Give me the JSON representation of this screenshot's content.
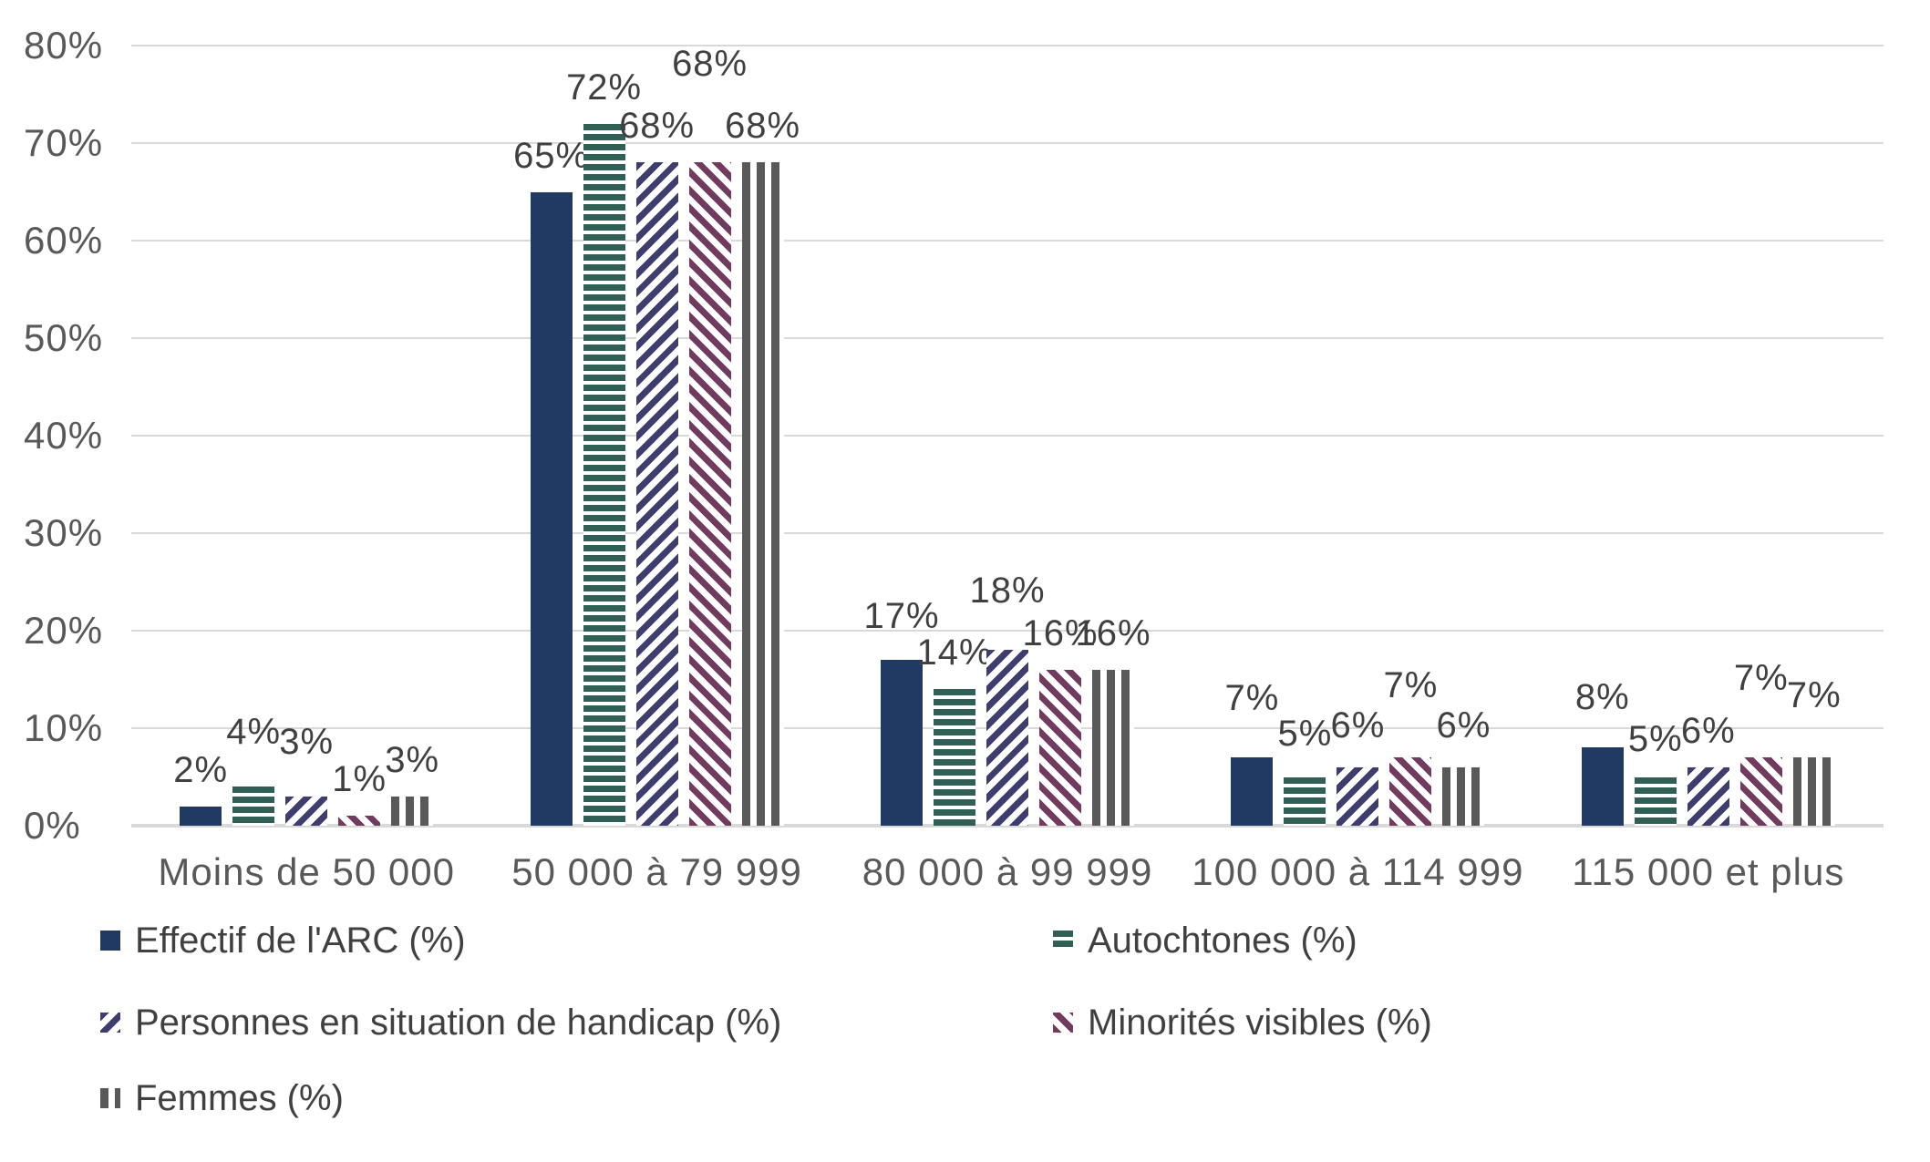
{
  "chart_data": {
    "type": "bar",
    "title": "",
    "categories": [
      "Moins de 50 000",
      "50 000 à 79 999",
      "80 000 à 99 999",
      "100 000 à 114 999",
      "115 000 et plus"
    ],
    "series": [
      {
        "name": "Effectif de l'ARC (%)",
        "pattern": "solid",
        "color": "#213A63",
        "values": [
          2,
          65,
          17,
          7,
          8
        ]
      },
      {
        "name": "Autochtones (%)",
        "pattern": "horizontal-stripes",
        "color": "#306055",
        "values": [
          4,
          72,
          14,
          5,
          5
        ]
      },
      {
        "name": "Personnes en situation de handicap (%)",
        "pattern": "diagonal-up-stripes",
        "color": "#3E3E6E",
        "values": [
          3,
          68,
          18,
          6,
          6
        ]
      },
      {
        "name": "Minorités visibles (%)",
        "pattern": "diagonal-down-stripes",
        "color": "#703B5F",
        "values": [
          1,
          68,
          16,
          7,
          7
        ]
      },
      {
        "name": "Femmes (%)",
        "pattern": "vertical-stripes",
        "color": "#595959",
        "values": [
          3,
          68,
          16,
          6,
          7
        ]
      }
    ],
    "data_labels": [
      "2%",
      "4%",
      "3%",
      "1%",
      "3%",
      "65%",
      "72%",
      "68%",
      "68%",
      "68%",
      "17%",
      "14%",
      "18%",
      "16%",
      "16%",
      "7%",
      "5%",
      "6%",
      "7%",
      "6%",
      "8%",
      "5%",
      "6%",
      "7%",
      "7%"
    ],
    "y_axis": {
      "min": 0,
      "max": 80,
      "tick_step": 10,
      "ticks": [
        "0%",
        "10%",
        "20%",
        "30%",
        "40%",
        "50%",
        "60%",
        "70%",
        "80%"
      ],
      "grid": true
    },
    "legend": {
      "position": "bottom",
      "columns": 2
    },
    "colors": {
      "grid": "#D9D9D9",
      "axis_text": "#595959",
      "data_label_text": "#404040",
      "legend_text": "#404040",
      "background": "#FFFFFF"
    }
  }
}
